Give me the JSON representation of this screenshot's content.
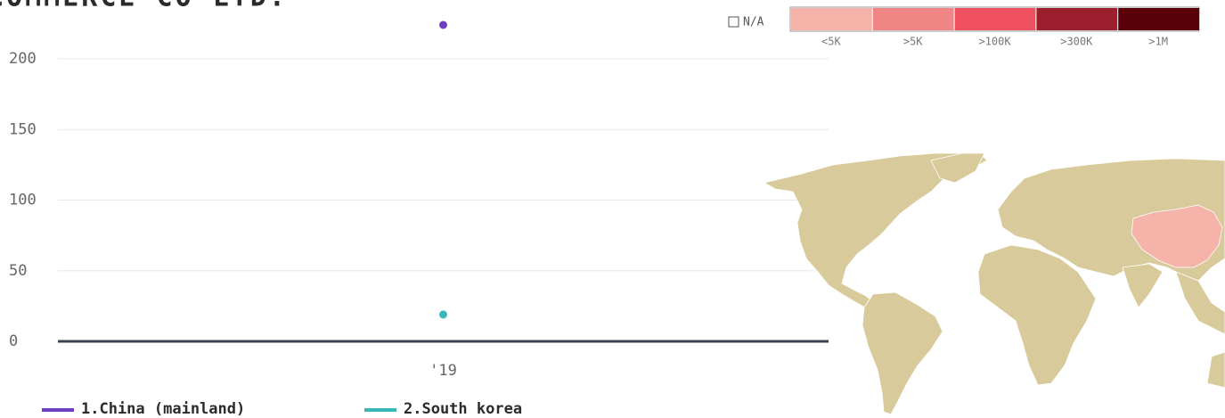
{
  "chart_data": {
    "type": "scatter",
    "title": "COMMERCE CO LTD.",
    "categories": [
      "'19"
    ],
    "series": [
      {
        "name": "1.China (mainland)",
        "color": "#6f3fc1",
        "values": [
          224
        ]
      },
      {
        "name": "2.South korea",
        "color": "#3ab8b8",
        "values": [
          19
        ]
      }
    ],
    "ylim": [
      0,
      235
    ],
    "yticks": [
      0,
      50,
      100,
      150,
      200
    ],
    "grid": true
  },
  "map_legend": {
    "na_label": "N/A",
    "bins": [
      {
        "label": "<5K",
        "color": "#f5b3aa"
      },
      {
        "label": ">5K",
        "color": "#f08585"
      },
      {
        "label": ">100K",
        "color": "#ef5060"
      },
      {
        "label": ">300K",
        "color": "#9b1f2c"
      },
      {
        "label": ">1M",
        "color": "#5a0008"
      }
    ]
  }
}
